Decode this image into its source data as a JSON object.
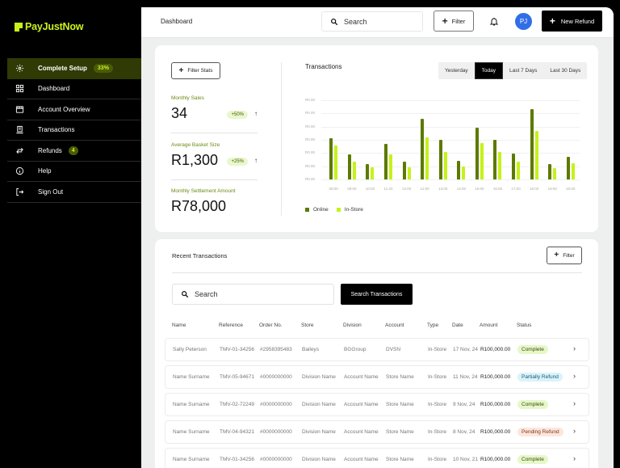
{
  "brand": {
    "name": "PayJustNow",
    "accent": "#c8f21c"
  },
  "sidebar": {
    "items": [
      {
        "label": "Complete Setup",
        "icon": "gear-icon",
        "badge": "33%",
        "active": true
      },
      {
        "label": "Dashboard",
        "icon": "grid-icon"
      },
      {
        "label": "Account Overview",
        "icon": "store-icon"
      },
      {
        "label": "Transactions",
        "icon": "receipt-icon"
      },
      {
        "label": "Refunds",
        "icon": "swap-arrows-icon",
        "badge": "4"
      },
      {
        "label": "Help",
        "icon": "info-icon"
      },
      {
        "label": "Sign Out",
        "icon": "sign-out-icon"
      }
    ]
  },
  "header": {
    "breadcrumb": "Dashboard",
    "search_placeholder": "Search",
    "filter_label": "Filter",
    "avatar_initials": "PJ",
    "new_refund_label": "New Refund"
  },
  "stats": {
    "filter_label": "Filter Stats",
    "items": [
      {
        "label": "Monthly Sales",
        "value": "34",
        "delta": "+50%",
        "trend": "↑"
      },
      {
        "label": "Average Basket Size",
        "value": "R1,300",
        "delta": "+25%",
        "trend": "↑"
      },
      {
        "label": "Monthly Settlement Amount",
        "value": "R78,000"
      }
    ]
  },
  "chart_panel": {
    "title": "Transactions",
    "ranges": [
      "Yesterday",
      "Today",
      "Last 7 Days",
      "Last 30 Days"
    ],
    "active_range": "Today"
  },
  "chart_data": {
    "type": "bar",
    "title": "Transactions",
    "categories": [
      "08:00",
      "09:00",
      "10:00",
      "11:20",
      "12:00",
      "12:00",
      "13:00",
      "14:00",
      "15:00",
      "16:00",
      "17:00",
      "18:00",
      "19:00",
      "20:00"
    ],
    "series": [
      {
        "name": "Online",
        "color": "#5c7a00",
        "values": [
          3.1,
          1.9,
          1.15,
          2.7,
          1.35,
          4.6,
          3.0,
          1.4,
          3.9,
          3.0,
          1.95,
          5.3,
          1.15,
          1.7
        ]
      },
      {
        "name": "In-Store",
        "color": "#c5f21a",
        "values": [
          2.6,
          1.35,
          0.9,
          1.9,
          0.9,
          3.2,
          2.1,
          1.0,
          2.75,
          2.1,
          1.35,
          3.7,
          0.85,
          1.25
        ]
      }
    ],
    "y_tick_labels": [
      "R0.00",
      "R0.00",
      "R0.00",
      "R0.00",
      "R0.00",
      "R0.00",
      "R0.00"
    ],
    "ylim": [
      0,
      6
    ],
    "grid": true,
    "legend_position": "bottom-left",
    "xlabel": "",
    "ylabel": ""
  },
  "transactions": {
    "title": "Recent Transactions",
    "filter_label": "Filter",
    "search_placeholder": "Search",
    "search_button": "Search Transactions",
    "columns": [
      "Name",
      "Reference",
      "Order No.",
      "Store",
      "Division",
      "Account",
      "Type",
      "Date",
      "Amount",
      "Status"
    ],
    "rows": [
      {
        "name": "Sally Peterson",
        "reference": "TMV-01-34256",
        "order": "#2958395483",
        "store": "Baileys",
        "division": "BGGroup",
        "account": "DVSN",
        "type": "In-Store",
        "date": "17 Nov, 24",
        "amount": "R100,000.00",
        "status": "Complete",
        "status_kind": "complete"
      },
      {
        "name": "Name Surname",
        "reference": "TMV-05-94671",
        "order": "#0000000000",
        "store": "Division Name",
        "division": "Account Name",
        "account": "Store Name",
        "type": "In-Store",
        "date": "11 Nov, 24",
        "amount": "R100,000.00",
        "status": "Partially Refund",
        "status_kind": "partial"
      },
      {
        "name": "Name Surname",
        "reference": "TMV-02-72249",
        "order": "#0000000000",
        "store": "Division Name",
        "division": "Account Name",
        "account": "Store Name",
        "type": "In-Store",
        "date": "9 Nov, 24",
        "amount": "R100,000.00",
        "status": "Complete",
        "status_kind": "complete"
      },
      {
        "name": "Name Surname",
        "reference": "TMV-04-94321",
        "order": "#0000000000",
        "store": "Division Name",
        "division": "Account Name",
        "account": "Store Name",
        "type": "In-Store",
        "date": "8 Nov, 24",
        "amount": "R100,000.00",
        "status": "Pending Refund",
        "status_kind": "pending"
      },
      {
        "name": "Name Surname",
        "reference": "TMV-01-34256",
        "order": "#0000000000",
        "store": "Division Name",
        "division": "Account Name",
        "account": "Store Name",
        "type": "In-Store",
        "date": "10 Nov, 21",
        "amount": "R100,000.00",
        "status": "Complete",
        "status_kind": "complete"
      }
    ]
  }
}
